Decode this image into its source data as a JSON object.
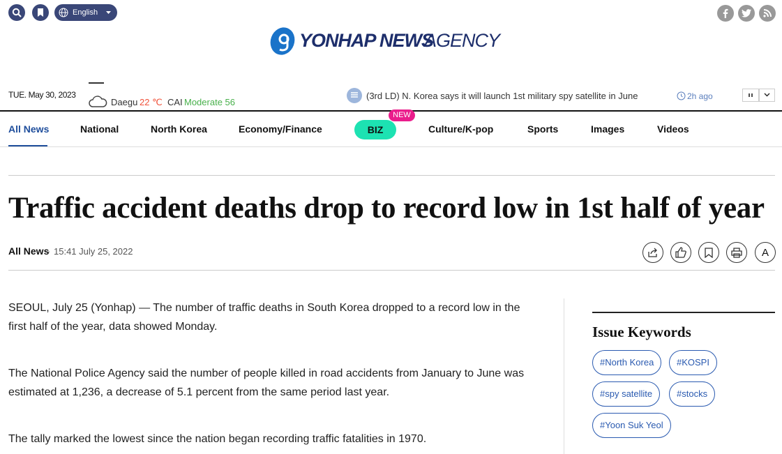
{
  "header": {
    "language": "English",
    "logo_bold": "YONHAP NEWS",
    "logo_light": "AGENCY"
  },
  "infobar": {
    "date": "TUE. May 30, 2023",
    "city": "Daegu",
    "temperature": "22 ℃",
    "air_label": "CAI",
    "air_value": "Moderate 56",
    "ticker": "(3rd LD) N. Korea says it will launch 1st military spy satellite in June",
    "ticker_time": "2h ago"
  },
  "nav": {
    "items": [
      "All News",
      "National",
      "North Korea",
      "Economy/Finance",
      "BIZ",
      "Culture/K-pop",
      "Sports",
      "Images",
      "Videos"
    ],
    "badge": "NEW"
  },
  "article": {
    "title": "Traffic accident deaths drop to record low in 1st half of year",
    "category": "All News",
    "separator": "·",
    "datetime": "15:41 July 25, 2022",
    "font_button": "A",
    "paragraphs": [
      "SEOUL, July 25 (Yonhap) — The number of traffic deaths in South Korea dropped to a record low in the first half of the year, data showed Monday.",
      "The National Police Agency said the number of people killed in road accidents from January to June was estimated at 1,236, a decrease of 5.1 percent from the same period last year.",
      "The tally marked the lowest since the nation began recording traffic fatalities in 1970."
    ]
  },
  "sidebar": {
    "title": "Issue Keywords",
    "keywords": [
      "#North Korea",
      "#KOSPI",
      "#spy satellite",
      "#stocks",
      "#Yoon Suk Yeol"
    ]
  }
}
